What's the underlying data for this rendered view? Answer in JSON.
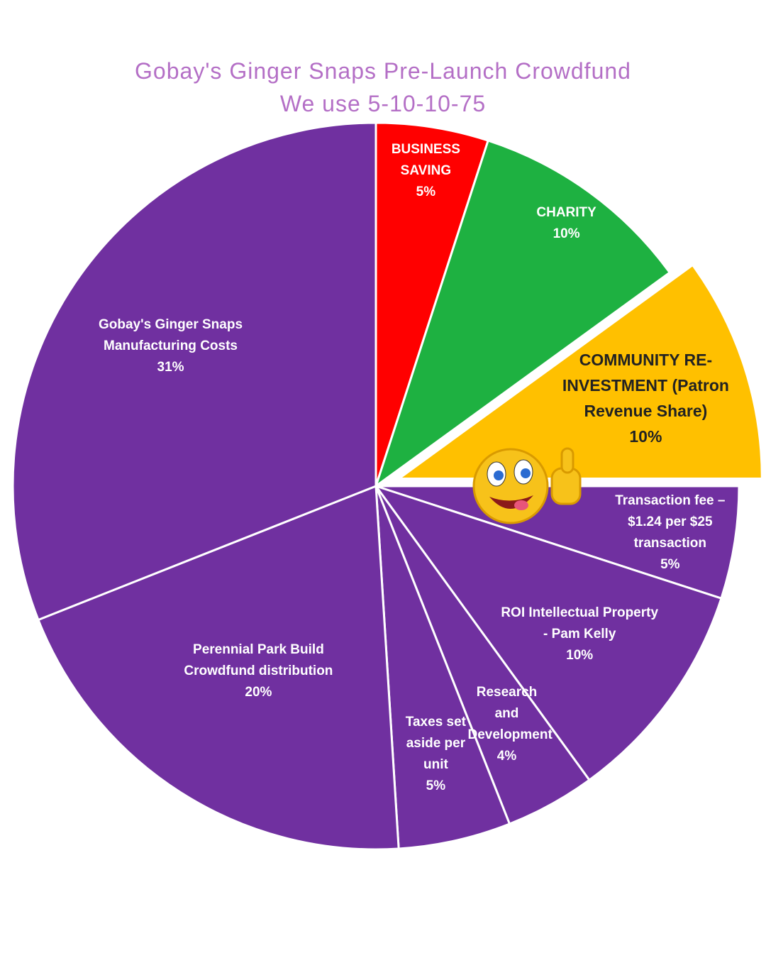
{
  "chart_data": {
    "type": "pie",
    "title": "Gobay's Ginger Snaps Pre-Launch Crowdfund",
    "subtitle": "We use 5-10-10-75",
    "categories": [
      "BUSINESS SAVING",
      "CHARITY",
      "COMMUNITY RE-INVESTMENT (Patron Revenue Share)",
      "Transaction fee – $1.24 per $25 transaction",
      "ROI Intellectual Property - Pam Kelly",
      "Research and Development",
      "Taxes set aside per unit",
      "Perennial Park Build Crowdfund distribution",
      "Gobay's Ginger Snaps Manufacturing Costs"
    ],
    "values": [
      5,
      10,
      10,
      5,
      10,
      4,
      5,
      20,
      31
    ],
    "value_labels": [
      "5%",
      "10%",
      "10%",
      "5%",
      "10%",
      "4%",
      "5%",
      "20%",
      "31%"
    ],
    "colors": [
      "#ff0000",
      "#1eb141",
      "#ffc000",
      "#7030a0",
      "#7030a0",
      "#7030a0",
      "#7030a0",
      "#7030a0",
      "#7030a0"
    ]
  }
}
